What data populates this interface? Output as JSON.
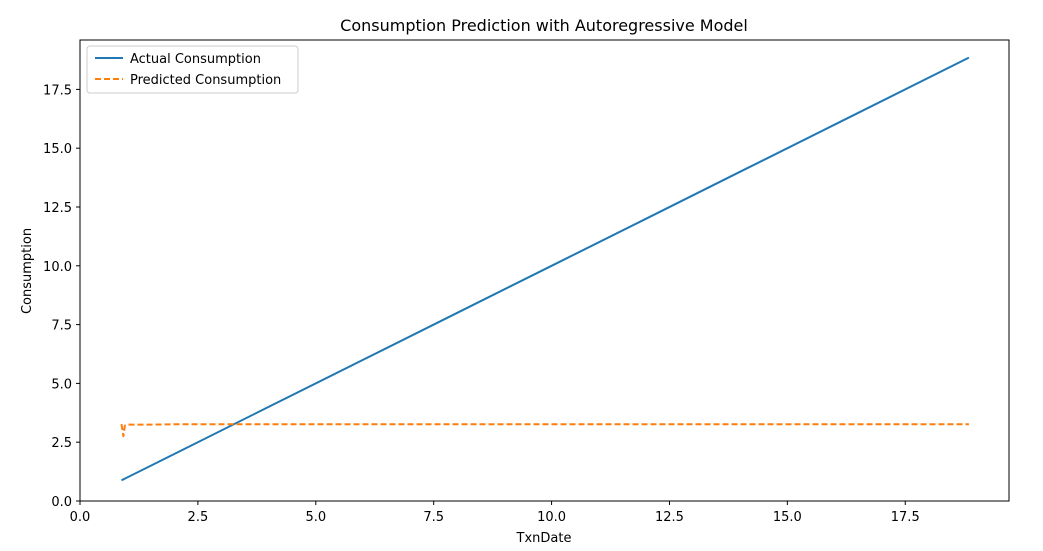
{
  "chart_data": {
    "type": "line",
    "title": "Consumption Prediction with Autoregressive Model",
    "xlabel": "TxnDate",
    "ylabel": "Consumption",
    "xlim": [
      0.0,
      19.7
    ],
    "ylim": [
      0.0,
      19.6
    ],
    "xticks": [
      0.0,
      2.5,
      5.0,
      7.5,
      10.0,
      12.5,
      15.0,
      17.5
    ],
    "yticks": [
      0.0,
      2.5,
      5.0,
      7.5,
      10.0,
      12.5,
      15.0,
      17.5
    ],
    "xtick_labels": [
      "0.0",
      "2.5",
      "5.0",
      "7.5",
      "10.0",
      "12.5",
      "15.0",
      "17.5"
    ],
    "ytick_labels": [
      "0.0",
      "2.5",
      "5.0",
      "7.5",
      "10.0",
      "12.5",
      "15.0",
      "17.5"
    ],
    "grid": false,
    "legend_position": "top-left",
    "series": [
      {
        "name": "Actual Consumption",
        "color": "#1f77b4",
        "style": "solid",
        "x": [
          0.88,
          2.0,
          4.0,
          6.0,
          8.0,
          10.0,
          12.0,
          14.0,
          16.0,
          18.0,
          18.85
        ],
        "y": [
          0.88,
          2.0,
          4.0,
          6.0,
          8.0,
          10.0,
          12.0,
          14.0,
          16.0,
          18.0,
          18.85
        ]
      },
      {
        "name": "Predicted Consumption",
        "color": "#ff7f0e",
        "style": "dashed",
        "x": [
          0.88,
          0.92,
          0.95,
          1.0,
          1.5,
          2.0,
          5.0,
          10.0,
          15.0,
          18.85
        ],
        "y": [
          3.27,
          2.75,
          3.2,
          3.25,
          3.25,
          3.26,
          3.26,
          3.26,
          3.26,
          3.26
        ]
      }
    ]
  }
}
